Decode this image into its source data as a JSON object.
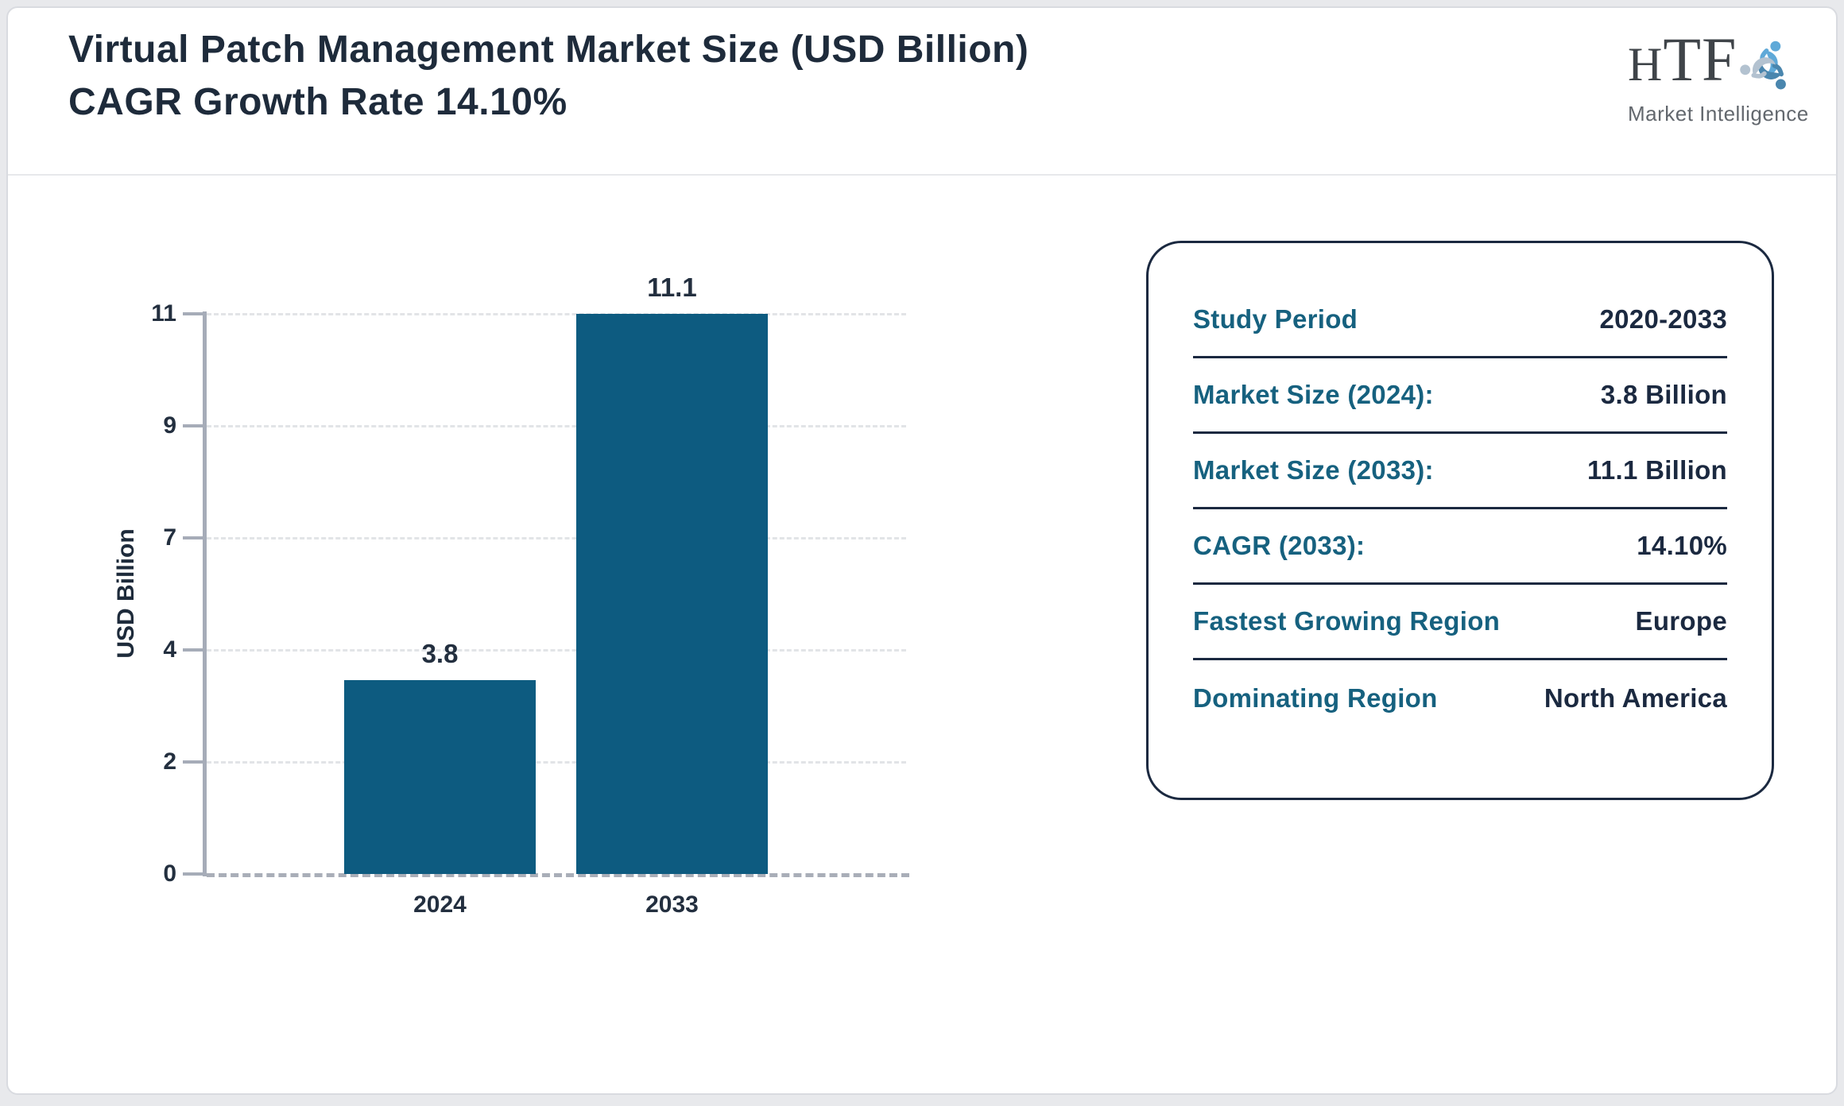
{
  "header": {
    "title": "Virtual Patch Management Market Size (USD Billion) CAGR Growth Rate 14.10%",
    "logo": {
      "brand": "HTF",
      "tagline": "Market Intelligence"
    }
  },
  "chart_data": {
    "type": "bar",
    "title": "Virtual Patch Management Market Size (USD Billion) CAGR Growth Rate 14.10%",
    "categories": [
      "2024",
      "2033"
    ],
    "values": [
      3.8,
      11.1
    ],
    "bar_labels": [
      "3.8",
      "11.1"
    ],
    "xlabel": "",
    "ylabel": "USD Billion",
    "yticks": [
      11,
      9,
      7,
      4,
      2,
      0
    ],
    "ylim": [
      0,
      11
    ],
    "grid": "horizontal-dashed",
    "legend": "none",
    "bar_color": "#0d5b80"
  },
  "info_panel": {
    "rows": [
      {
        "label": "Study Period",
        "value": "2020-2033"
      },
      {
        "label": "Market Size (2024):",
        "value": "3.8 Billion"
      },
      {
        "label": "Market Size (2033):",
        "value": "11.1 Billion"
      },
      {
        "label": "CAGR (2033):",
        "value": "14.10%"
      },
      {
        "label": "Fastest Growing Region",
        "value": "Europe"
      },
      {
        "label": "Dominating Region",
        "value": "North America"
      }
    ]
  },
  "colors": {
    "accent_teal": "#16617f",
    "navy_text": "#1e2b3b",
    "bar": "#0d5b80",
    "panel_border": "#1b2940",
    "axis_gray": "#a6acb8",
    "page_bg": "#e8e9ec"
  }
}
